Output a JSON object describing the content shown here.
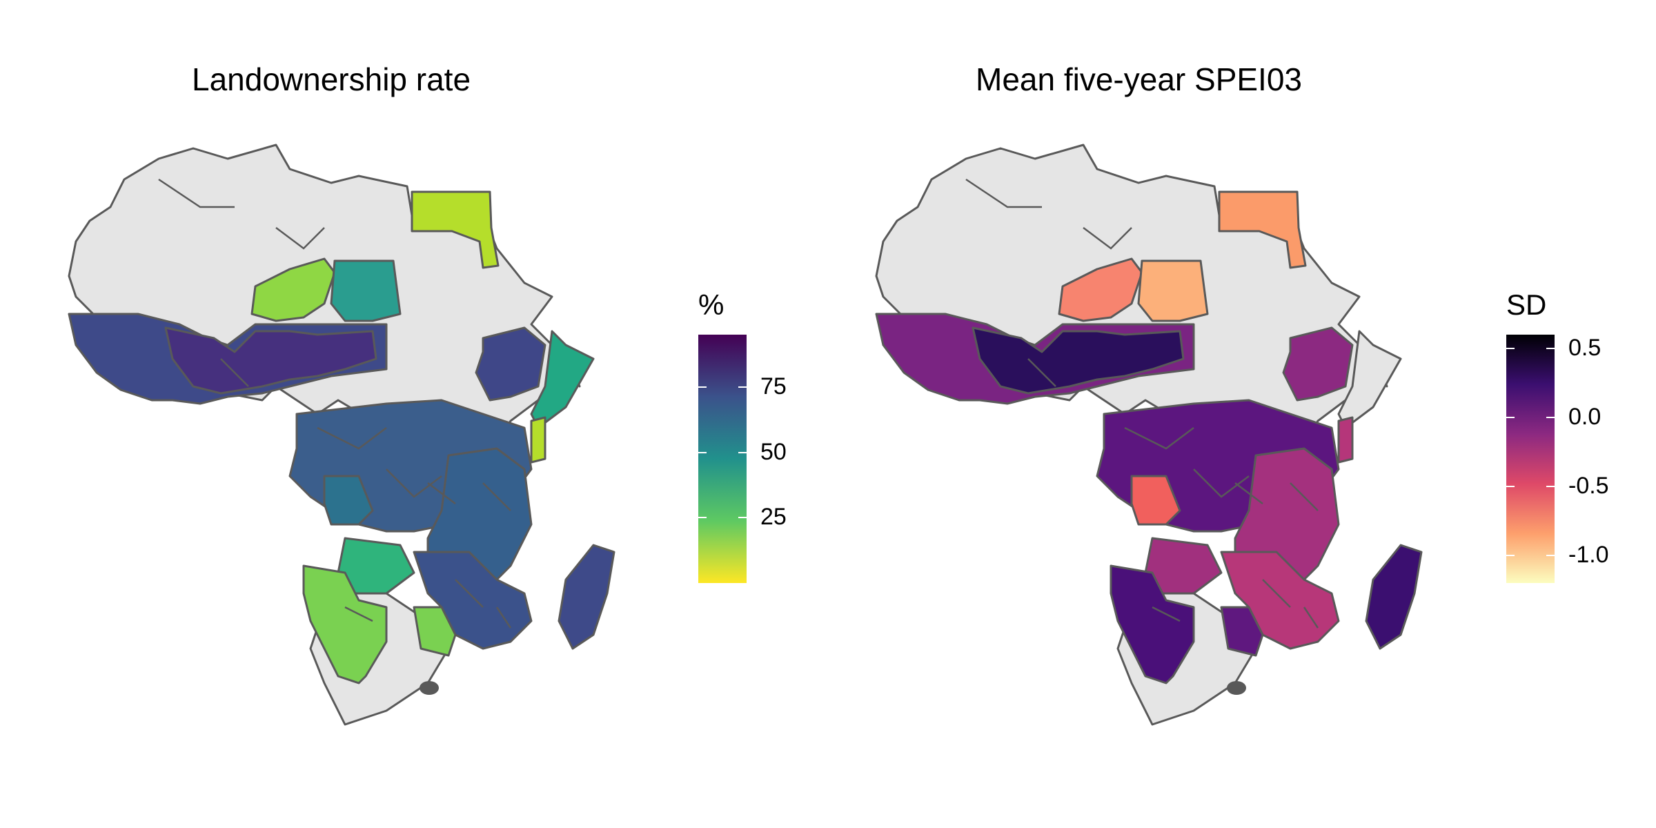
{
  "panels": [
    {
      "title": "Landownership rate",
      "legend": {
        "title": "%",
        "palette": "viridis (reversed)",
        "colors": [
          "#fde725",
          "#5ec962",
          "#21918c",
          "#3b528b",
          "#440154"
        ],
        "range": [
          0,
          95
        ],
        "ticks": [
          {
            "value": 75,
            "label": "75"
          },
          {
            "value": 50,
            "label": "50"
          },
          {
            "value": 25,
            "label": "25"
          }
        ]
      },
      "region_colors": {
        "egypt": "#b5de2b",
        "niger": "#8fd744",
        "chad": "#2a9d8f",
        "west": "#3e4a89",
        "sahel_dark": "#46307e",
        "central": "#3b5e8c",
        "east": "#35608d",
        "ethiopia": "#3f4788",
        "somalia": "#22a884",
        "kenya_strip": "#b5de2b",
        "angola_ne": "#2c728e",
        "zambia": "#2fb47c",
        "namibia": "#7ad151",
        "botswana_s": "#7ad151",
        "southeast": "#3b528b",
        "madagascar": "#3e4a89",
        "no_data": "#e5e5e5"
      }
    },
    {
      "title": "Mean five-year SPEI03",
      "legend": {
        "title": "SD",
        "palette": "magma",
        "colors": [
          "#fcfdbf",
          "#fd9f6c",
          "#de4968",
          "#8c2981",
          "#3b0f70",
          "#000004"
        ],
        "range": [
          -1.2,
          0.6
        ],
        "ticks": [
          {
            "value": 0.5,
            "label": "0.5"
          },
          {
            "value": 0.0,
            "label": "0.0"
          },
          {
            "value": -0.5,
            "label": "-0.5"
          },
          {
            "value": -1.0,
            "label": "-1.0"
          }
        ]
      },
      "region_colors": {
        "egypt": "#fb9b6a",
        "niger": "#f7846f",
        "chad": "#fcb07a",
        "west": "#7a2482",
        "sahel_dark": "#2a0f5c",
        "central": "#5c167f",
        "east": "#a4317e",
        "ethiopia": "#8c2981",
        "somalia": "#e5e5e5",
        "kenya_strip": "#b5367a",
        "angola_ne": "#f1605d",
        "zambia": "#a1307e",
        "namibia": "#4a1079",
        "botswana_s": "#5f187f",
        "southeast": "#b73779",
        "madagascar": "#3b0f70",
        "no_data": "#e5e5e5"
      }
    }
  ]
}
